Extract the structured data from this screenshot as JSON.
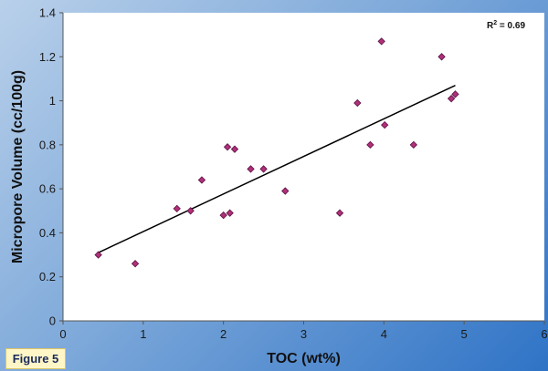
{
  "figure_label": "Figure 5",
  "colors": {
    "plot_background": "#ffffff",
    "marker": "#b0307a",
    "marker_edge": "#5a1040",
    "trendline": "#000000"
  },
  "chart_data": {
    "type": "scatter",
    "xlabel": "TOC (wt%)",
    "ylabel": "Micropore Volume (cc/100g)",
    "annotation": {
      "text_main": "R",
      "superscript": "2",
      "text_rest": " = 0.69"
    },
    "xlim": [
      0,
      6
    ],
    "ylim": [
      0,
      1.4
    ],
    "x_ticks": [
      0,
      1,
      2,
      3,
      4,
      5,
      6
    ],
    "y_ticks": [
      0,
      0.2,
      0.4,
      0.6,
      0.8,
      1,
      1.2,
      1.4
    ],
    "x_tick_labels": [
      "0",
      "1",
      "2",
      "3",
      "4",
      "5",
      "6"
    ],
    "y_tick_labels": [
      "0",
      "0.2",
      "0.4",
      "0.6",
      "0.8",
      "1",
      "1.2",
      "1.4"
    ],
    "grid": false,
    "points": [
      {
        "x": 0.44,
        "y": 0.3
      },
      {
        "x": 0.9,
        "y": 0.26
      },
      {
        "x": 1.42,
        "y": 0.51
      },
      {
        "x": 1.59,
        "y": 0.5
      },
      {
        "x": 1.73,
        "y": 0.64
      },
      {
        "x": 2.0,
        "y": 0.48
      },
      {
        "x": 2.05,
        "y": 0.79
      },
      {
        "x": 2.08,
        "y": 0.49
      },
      {
        "x": 2.14,
        "y": 0.78
      },
      {
        "x": 2.34,
        "y": 0.69
      },
      {
        "x": 2.5,
        "y": 0.69
      },
      {
        "x": 2.77,
        "y": 0.59
      },
      {
        "x": 3.45,
        "y": 0.49
      },
      {
        "x": 3.67,
        "y": 0.99
      },
      {
        "x": 3.83,
        "y": 0.8
      },
      {
        "x": 3.97,
        "y": 1.27
      },
      {
        "x": 4.01,
        "y": 0.89
      },
      {
        "x": 4.37,
        "y": 0.8
      },
      {
        "x": 4.72,
        "y": 1.2
      },
      {
        "x": 4.84,
        "y": 1.01
      },
      {
        "x": 4.89,
        "y": 1.03
      }
    ],
    "trendline": {
      "type": "linear",
      "x_start": 0.44,
      "y_start": 0.31,
      "x_end": 4.89,
      "y_end": 1.07
    }
  }
}
